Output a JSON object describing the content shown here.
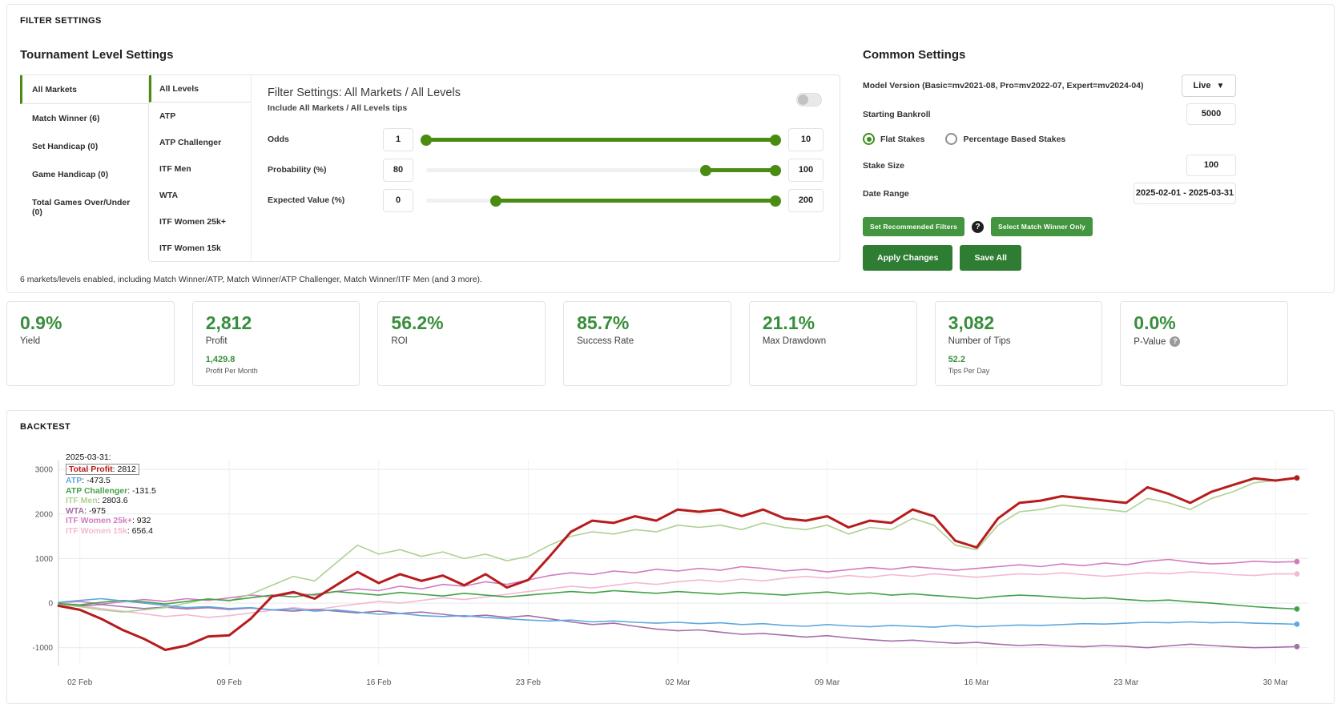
{
  "app": {
    "filter_settings_title": "FILTER SETTINGS",
    "backtest_title": "BACKTEST"
  },
  "tournament": {
    "title": "Tournament Level Settings",
    "markets": [
      {
        "label": "All Markets",
        "active": true
      },
      {
        "label": "Match Winner (6)",
        "active": false
      },
      {
        "label": "Set Handicap (0)",
        "active": false
      },
      {
        "label": "Game Handicap (0)",
        "active": false
      },
      {
        "label": "Total Games Over/Under (0)",
        "active": false
      }
    ],
    "levels": [
      {
        "label": "All Levels",
        "active": true
      },
      {
        "label": "ATP",
        "active": false
      },
      {
        "label": "ATP Challenger",
        "active": false
      },
      {
        "label": "ITF Men",
        "active": false
      },
      {
        "label": "WTA",
        "active": false
      },
      {
        "label": "ITF Women 25k+",
        "active": false
      },
      {
        "label": "ITF Women 15k",
        "active": false
      }
    ],
    "summary": "6 markets/levels enabled, including Match Winner/ATP, Match Winner/ATP Challenger, Match Winner/ITF Men (and 3 more)."
  },
  "filter_panel": {
    "title": "Filter Settings: All Markets / All Levels",
    "include_label": "Include All Markets / All Levels tips",
    "toggle_on": false,
    "sliders": [
      {
        "label": "Odds",
        "low_display": "1",
        "high_display": "10",
        "range_min": 1,
        "range_max": 10,
        "low": 1,
        "high": 10
      },
      {
        "label": "Probability (%)",
        "low_display": "80",
        "high_display": "100",
        "range_min": 0,
        "range_max": 100,
        "low": 80,
        "high": 100
      },
      {
        "label": "Expected Value (%)",
        "low_display": "0",
        "high_display": "200",
        "range_min": -50,
        "range_max": 200,
        "low": 0,
        "high": 200
      }
    ]
  },
  "common": {
    "title": "Common Settings",
    "model_version_label": "Model Version (Basic=mv2021-08, Pro=mv2022-07, Expert=mv2024-04)",
    "model_version_value": "Live",
    "starting_bankroll_label": "Starting Bankroll",
    "starting_bankroll_value": "5000",
    "stake_radio": [
      {
        "label": "Flat Stakes",
        "selected": true
      },
      {
        "label": "Percentage Based Stakes",
        "selected": false
      }
    ],
    "stake_size_label": "Stake Size",
    "stake_size_value": "100",
    "date_range_label": "Date Range",
    "date_range_value": "2025-02-01 - 2025-03-31",
    "buttons": {
      "set_recommended": "Set Recommended Filters",
      "select_match_winner": "Select Match Winner Only",
      "apply": "Apply Changes",
      "save": "Save All"
    },
    "help_icon": "?"
  },
  "stats": [
    {
      "value": "0.9%",
      "label": "Yield",
      "sub_value": "",
      "sub_label": "",
      "help": false
    },
    {
      "value": "2,812",
      "label": "Profit",
      "sub_value": "1,429.8",
      "sub_label": "Profit Per Month",
      "help": false
    },
    {
      "value": "56.2%",
      "label": "ROI",
      "sub_value": "",
      "sub_label": "",
      "help": false
    },
    {
      "value": "85.7%",
      "label": "Success Rate",
      "sub_value": "",
      "sub_label": "",
      "help": false
    },
    {
      "value": "21.1%",
      "label": "Max Drawdown",
      "sub_value": "",
      "sub_label": "",
      "help": false
    },
    {
      "value": "3,082",
      "label": "Number of Tips",
      "sub_value": "52.2",
      "sub_label": "Tips Per Day",
      "help": false
    },
    {
      "value": "0.0%",
      "label": "P-Value",
      "sub_value": "",
      "sub_label": "",
      "help": true
    }
  ],
  "chart_data": {
    "type": "line",
    "title": "BACKTEST",
    "tooltip_date": "2025-03-31:",
    "x_tick_indices": [
      1,
      8,
      15,
      22,
      29,
      36,
      43,
      50,
      57
    ],
    "x_tick_labels": [
      "02 Feb",
      "09 Feb",
      "16 Feb",
      "23 Feb",
      "02 Mar",
      "09 Mar",
      "16 Mar",
      "23 Mar",
      "30 Mar"
    ],
    "y_ticks": [
      -1000,
      0,
      1000,
      2000,
      3000
    ],
    "ylim": [
      -1400,
      3200
    ],
    "grid": true,
    "legend_position": "top-left-overlay",
    "series": [
      {
        "name": "Total Profit",
        "color": "#b71c1c",
        "width": 3,
        "end_label": "2812",
        "boxed": true,
        "values": [
          -60,
          -150,
          -350,
          -600,
          -800,
          -1050,
          -950,
          -750,
          -720,
          -350,
          150,
          250,
          100,
          400,
          700,
          450,
          650,
          500,
          620,
          400,
          650,
          350,
          520,
          1050,
          1600,
          1850,
          1800,
          1950,
          1850,
          2100,
          2050,
          2100,
          1950,
          2100,
          1900,
          1850,
          1950,
          1700,
          1850,
          1800,
          2100,
          1950,
          1400,
          1250,
          1900,
          2250,
          2300,
          2400,
          2350,
          2300,
          2250,
          2600,
          2450,
          2250,
          2500,
          2650,
          2800,
          2750,
          2812
        ]
      },
      {
        "name": "ATP",
        "color": "#5fa8e0",
        "width": 1.6,
        "end_label": "-473.5",
        "boxed": false,
        "values": [
          20,
          60,
          100,
          50,
          0,
          -50,
          -100,
          -80,
          -120,
          -100,
          -150,
          -130,
          -180,
          -150,
          -200,
          -250,
          -230,
          -280,
          -300,
          -280,
          -320,
          -350,
          -380,
          -400,
          -380,
          -420,
          -400,
          -430,
          -450,
          -430,
          -460,
          -440,
          -480,
          -460,
          -500,
          -520,
          -480,
          -510,
          -530,
          -500,
          -520,
          -540,
          -500,
          -530,
          -510,
          -490,
          -500,
          -480,
          -460,
          -470,
          -450,
          -430,
          -440,
          -420,
          -440,
          -430,
          -450,
          -460,
          -473.5
        ]
      },
      {
        "name": "ATP Challenger",
        "color": "#44a248",
        "width": 1.6,
        "end_label": "-131.5",
        "boxed": false,
        "values": [
          -10,
          -40,
          20,
          60,
          30,
          -20,
          40,
          90,
          60,
          120,
          180,
          140,
          200,
          260,
          220,
          180,
          240,
          200,
          160,
          220,
          180,
          140,
          180,
          220,
          260,
          230,
          280,
          250,
          220,
          260,
          230,
          200,
          240,
          210,
          180,
          220,
          250,
          200,
          230,
          180,
          210,
          170,
          140,
          100,
          150,
          180,
          160,
          130,
          100,
          120,
          80,
          50,
          70,
          30,
          0,
          -40,
          -80,
          -110,
          -131.5
        ]
      },
      {
        "name": "ITF Men",
        "color": "#aed191",
        "width": 1.6,
        "end_label": "2803.6",
        "boxed": false,
        "values": [
          -30,
          -80,
          -150,
          -200,
          -150,
          -100,
          0,
          100,
          50,
          200,
          400,
          600,
          500,
          900,
          1300,
          1100,
          1200,
          1050,
          1150,
          1000,
          1100,
          950,
          1050,
          1300,
          1500,
          1600,
          1550,
          1650,
          1600,
          1750,
          1700,
          1750,
          1650,
          1800,
          1700,
          1650,
          1750,
          1550,
          1700,
          1650,
          1900,
          1750,
          1300,
          1200,
          1750,
          2050,
          2100,
          2200,
          2150,
          2100,
          2050,
          2350,
          2250,
          2100,
          2350,
          2500,
          2700,
          2750,
          2803.6
        ]
      },
      {
        "name": "WTA",
        "color": "#a56fa8",
        "width": 1.6,
        "end_label": "-975",
        "boxed": false,
        "values": [
          -20,
          -60,
          -30,
          -80,
          -120,
          -90,
          -130,
          -100,
          -140,
          -110,
          -150,
          -180,
          -140,
          -180,
          -220,
          -180,
          -230,
          -200,
          -250,
          -300,
          -270,
          -320,
          -280,
          -350,
          -420,
          -480,
          -450,
          -520,
          -580,
          -620,
          -600,
          -650,
          -700,
          -680,
          -720,
          -760,
          -730,
          -780,
          -820,
          -850,
          -830,
          -870,
          -900,
          -880,
          -920,
          -950,
          -930,
          -960,
          -980,
          -950,
          -970,
          -1000,
          -960,
          -920,
          -950,
          -980,
          -1000,
          -990,
          -975
        ]
      },
      {
        "name": "ITF Women 25k+",
        "color": "#d37bc0",
        "width": 1.6,
        "end_label": "932",
        "boxed": false,
        "values": [
          10,
          40,
          -20,
          30,
          80,
          40,
          100,
          60,
          120,
          180,
          140,
          220,
          180,
          260,
          320,
          280,
          380,
          320,
          420,
          380,
          480,
          420,
          520,
          620,
          680,
          640,
          720,
          680,
          760,
          720,
          780,
          740,
          820,
          780,
          720,
          760,
          700,
          750,
          800,
          760,
          820,
          780,
          740,
          780,
          820,
          860,
          820,
          880,
          840,
          900,
          860,
          940,
          980,
          920,
          880,
          900,
          940,
          920,
          932
        ]
      },
      {
        "name": "ITF Women 15k",
        "color": "#f3b9d3",
        "width": 1.6,
        "end_label": "656.4",
        "boxed": false,
        "values": [
          -10,
          -60,
          -120,
          -180,
          -240,
          -300,
          -260,
          -320,
          -280,
          -220,
          -160,
          -100,
          -150,
          -80,
          -20,
          40,
          0,
          60,
          120,
          80,
          140,
          200,
          260,
          320,
          380,
          340,
          400,
          460,
          420,
          480,
          520,
          480,
          540,
          500,
          560,
          600,
          560,
          620,
          580,
          640,
          600,
          660,
          620,
          580,
          620,
          660,
          640,
          680,
          640,
          600,
          640,
          680,
          660,
          700,
          680,
          640,
          620,
          660,
          656.4
        ]
      }
    ]
  }
}
